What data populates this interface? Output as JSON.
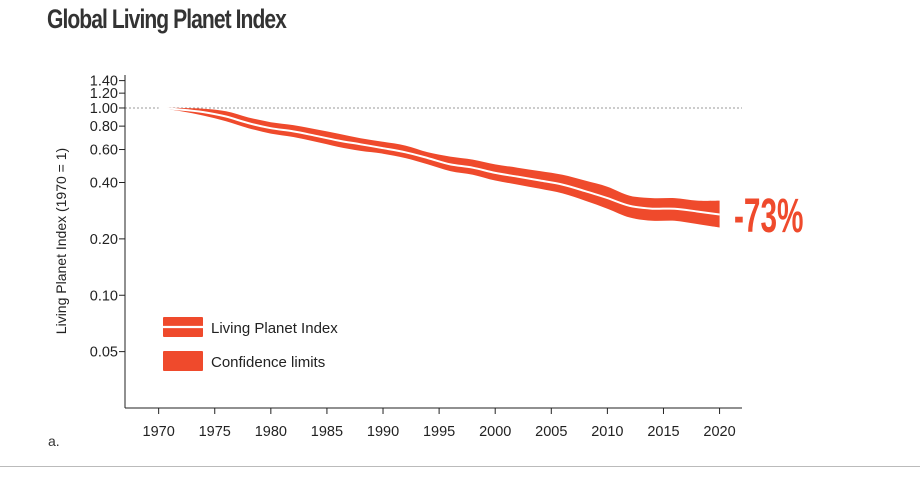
{
  "title": "Global Living Planet Index",
  "panel_label": "a.",
  "colors": {
    "band": "#ef4a2c",
    "line": "#ffffff",
    "text": "#333333",
    "reference_line": "#999999"
  },
  "chart_data": {
    "type": "line",
    "title": "Global Living Planet Index",
    "xlabel": "",
    "ylabel": "Living Planet Index (1970 = 1)",
    "yscale": "log",
    "xlim": [
      1967,
      2022
    ],
    "ylim": [
      0.025,
      1.5
    ],
    "x_ticks": [
      1970,
      1975,
      1980,
      1985,
      1990,
      1995,
      2000,
      2005,
      2010,
      2015,
      2020
    ],
    "y_ticks": [
      0.05,
      0.1,
      0.2,
      0.4,
      0.6,
      0.8,
      1.0,
      1.2,
      1.4
    ],
    "y_tick_labels": [
      "0.05",
      "0.10",
      "0.20",
      "0.40",
      "0.60",
      "0.80",
      "1.00",
      "1.20",
      "1.40"
    ],
    "reference_line": 1.0,
    "grid": false,
    "legend_position": "bottom-left",
    "legend": [
      {
        "label": "Living Planet Index",
        "kind": "line"
      },
      {
        "label": "Confidence limits",
        "kind": "band"
      }
    ],
    "annotation": "-73%",
    "x": [
      1970,
      1972,
      1974,
      1976,
      1978,
      1980,
      1982,
      1984,
      1986,
      1988,
      1990,
      1992,
      1994,
      1996,
      1998,
      2000,
      2002,
      2004,
      2006,
      2008,
      2010,
      2012,
      2014,
      2016,
      2018,
      2020
    ],
    "series": [
      {
        "name": "Living Planet Index",
        "values": [
          1.0,
          0.98,
          0.95,
          0.9,
          0.83,
          0.78,
          0.75,
          0.71,
          0.67,
          0.64,
          0.61,
          0.58,
          0.54,
          0.5,
          0.48,
          0.45,
          0.43,
          0.41,
          0.39,
          0.36,
          0.33,
          0.3,
          0.29,
          0.29,
          0.28,
          0.27
        ]
      },
      {
        "name": "Confidence limits (upper)",
        "values": [
          1.0,
          1.0,
          0.99,
          0.96,
          0.89,
          0.84,
          0.81,
          0.77,
          0.73,
          0.69,
          0.66,
          0.63,
          0.58,
          0.55,
          0.53,
          0.5,
          0.48,
          0.46,
          0.44,
          0.41,
          0.38,
          0.34,
          0.33,
          0.33,
          0.32,
          0.32
        ]
      },
      {
        "name": "Confidence limits (lower)",
        "values": [
          1.0,
          0.96,
          0.91,
          0.85,
          0.78,
          0.73,
          0.7,
          0.66,
          0.62,
          0.59,
          0.57,
          0.54,
          0.5,
          0.46,
          0.44,
          0.41,
          0.39,
          0.37,
          0.35,
          0.32,
          0.29,
          0.26,
          0.25,
          0.25,
          0.24,
          0.23
        ]
      }
    ]
  }
}
